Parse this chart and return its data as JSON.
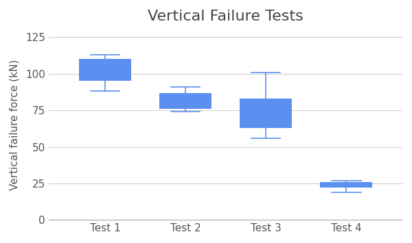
{
  "title": "Vertical Failure Tests",
  "ylabel": "Vertical failure force (kN)",
  "xlabel": "",
  "categories": [
    "Test 1",
    "Test 2",
    "Test 3",
    "Test 4"
  ],
  "boxes": [
    {
      "whislo": 88,
      "q1": 95,
      "med": 99,
      "q3": 110,
      "whishi": 113
    },
    {
      "whislo": 74,
      "q1": 76,
      "med": 79,
      "q3": 87,
      "whishi": 91
    },
    {
      "whislo": 56,
      "q1": 63,
      "med": 75,
      "q3": 83,
      "whishi": 101
    },
    {
      "whislo": 19,
      "q1": 22,
      "med": 24,
      "q3": 26,
      "whishi": 27
    }
  ],
  "box_color": "#5b8ff0",
  "box_edge_color": "#5b8ff0",
  "median_color": "#5b8ff0",
  "whisker_color": "#5b8ff0",
  "cap_color": "#5b8ff0",
  "ylim": [
    0,
    130
  ],
  "yticks": [
    0,
    25,
    50,
    75,
    100,
    125
  ],
  "background_color": "#ffffff",
  "grid_color": "#d0d0d0",
  "title_fontsize": 16,
  "label_fontsize": 11,
  "tick_fontsize": 11
}
